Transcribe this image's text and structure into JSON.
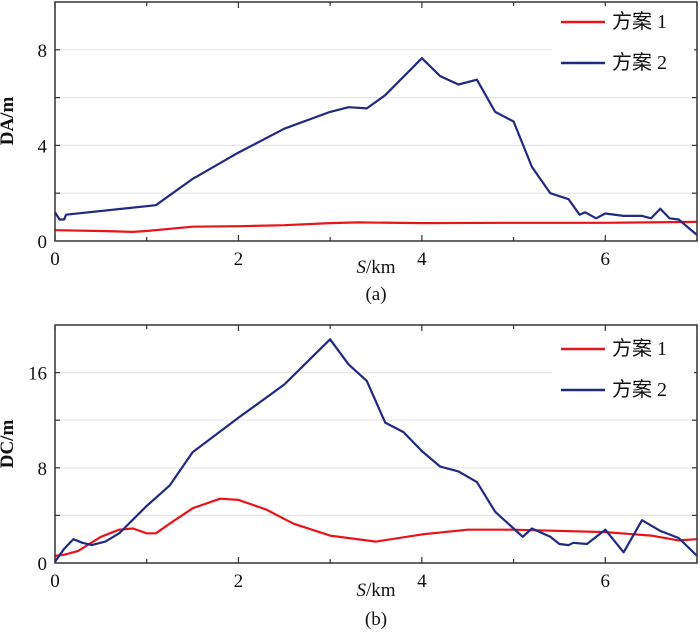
{
  "chart_data": [
    {
      "type": "line",
      "panel_label": "(a)",
      "xlabel_italic": "S",
      "xlabel_unit": "/km",
      "ylabel": "DA/m",
      "xlim": [
        0,
        7
      ],
      "ylim": [
        0,
        10
      ],
      "xticks": [
        0,
        2,
        4,
        6
      ],
      "yticks": [
        0,
        4,
        8
      ],
      "grid": "horizontal",
      "legend_position": "top-right",
      "series": [
        {
          "name": "方案 1",
          "color": "#e8141b",
          "x": [
            0,
            0.5,
            0.85,
            1.0,
            1.5,
            2,
            2.5,
            3,
            3.3,
            4,
            5,
            6,
            7
          ],
          "y": [
            0.45,
            0.42,
            0.38,
            0.42,
            0.6,
            0.62,
            0.66,
            0.75,
            0.78,
            0.75,
            0.76,
            0.76,
            0.8
          ]
        },
        {
          "name": "方案 2",
          "color": "#1f2a80",
          "x": [
            0,
            0.05,
            0.1,
            0.12,
            1.1,
            1.5,
            2,
            2.5,
            3,
            3.2,
            3.4,
            3.6,
            4,
            4.2,
            4.4,
            4.6,
            4.8,
            5.0,
            5.2,
            5.4,
            5.6,
            5.72,
            5.78,
            5.9,
            6.0,
            6.2,
            6.4,
            6.5,
            6.6,
            6.7,
            6.8,
            7.0
          ],
          "y": [
            1.2,
            0.9,
            0.9,
            1.1,
            1.5,
            2.6,
            3.7,
            4.7,
            5.4,
            5.6,
            5.55,
            6.1,
            7.65,
            6.9,
            6.55,
            6.75,
            5.4,
            5.0,
            3.1,
            2.0,
            1.75,
            1.1,
            1.2,
            0.95,
            1.15,
            1.05,
            1.05,
            0.95,
            1.35,
            0.95,
            0.9,
            0.25
          ]
        }
      ]
    },
    {
      "type": "line",
      "panel_label": "(b)",
      "xlabel_italic": "S",
      "xlabel_unit": "/km",
      "ylabel": "DC/m",
      "xlim": [
        0,
        7
      ],
      "ylim": [
        0,
        20
      ],
      "xticks": [
        0,
        2,
        4,
        6
      ],
      "yticks": [
        0,
        8,
        16
      ],
      "grid": "horizontal",
      "legend_position": "top-right",
      "series": [
        {
          "name": "方案 1",
          "color": "#e8141b",
          "x": [
            0,
            0.1,
            0.25,
            0.5,
            0.7,
            0.85,
            1.0,
            1.1,
            1.25,
            1.5,
            1.8,
            2.0,
            2.3,
            2.6,
            3.0,
            3.5,
            4.0,
            4.5,
            5.0,
            6.0,
            6.5,
            6.8,
            7.0
          ],
          "y": [
            0.6,
            0.7,
            1.0,
            2.2,
            2.8,
            2.9,
            2.5,
            2.5,
            3.3,
            4.6,
            5.4,
            5.3,
            4.5,
            3.3,
            2.3,
            1.8,
            2.4,
            2.8,
            2.8,
            2.6,
            2.3,
            1.9,
            2.0
          ]
        },
        {
          "name": "方案 2",
          "color": "#1f2a80",
          "x": [
            0,
            0.1,
            0.2,
            0.3,
            0.4,
            0.55,
            0.7,
            1.0,
            1.25,
            1.5,
            2,
            2.5,
            3.0,
            3.2,
            3.4,
            3.6,
            3.8,
            4.0,
            4.2,
            4.4,
            4.6,
            4.8,
            5.0,
            5.1,
            5.2,
            5.4,
            5.5,
            5.6,
            5.65,
            5.8,
            6.0,
            6.2,
            6.4,
            6.6,
            6.8,
            7.0
          ],
          "y": [
            0.1,
            1.2,
            2.0,
            1.7,
            1.5,
            1.8,
            2.5,
            4.8,
            6.5,
            9.3,
            12.2,
            15.0,
            18.8,
            16.7,
            15.3,
            11.8,
            11.0,
            9.4,
            8.1,
            7.7,
            6.8,
            4.3,
            2.9,
            2.2,
            2.9,
            2.2,
            1.6,
            1.5,
            1.7,
            1.6,
            2.8,
            0.9,
            3.6,
            2.7,
            2.1,
            0.6
          ]
        }
      ]
    }
  ]
}
